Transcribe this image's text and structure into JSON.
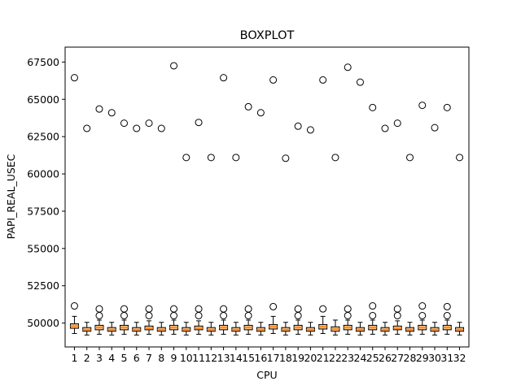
{
  "chart_data": {
    "type": "boxplot",
    "title": "BOXPLOT",
    "xlabel": "CPU",
    "ylabel": "PAPI_REAL_USEC",
    "ylim": [
      48400,
      68500
    ],
    "yticks": [
      50000,
      52500,
      55000,
      57500,
      60000,
      62500,
      65000,
      67500
    ],
    "ytick_labels": [
      "50000",
      "52500",
      "55000",
      "57500",
      "60000",
      "62500",
      "65000",
      "67500"
    ],
    "categories": [
      "1",
      "2",
      "3",
      "4",
      "5",
      "6",
      "7",
      "8",
      "9",
      "10",
      "11",
      "12",
      "13",
      "14",
      "15",
      "16",
      "17",
      "18",
      "19",
      "20",
      "21",
      "22",
      "23",
      "24",
      "25",
      "26",
      "27",
      "28",
      "29",
      "30",
      "31",
      "32"
    ],
    "box_color": "#ffbf80",
    "median_color": "#ff7f0e",
    "boxes": [
      {
        "q1": 49650,
        "median": 49800,
        "q3": 49950,
        "whislo": 49300,
        "whishi": 50450,
        "fliers": [
          51150,
          66450
        ]
      },
      {
        "q1": 49450,
        "median": 49550,
        "q3": 49700,
        "whislo": 49200,
        "whishi": 50050,
        "fliers": [
          63050
        ]
      },
      {
        "q1": 49550,
        "median": 49700,
        "q3": 49850,
        "whislo": 49250,
        "whishi": 50200,
        "fliers": [
          50500,
          50950,
          64350
        ]
      },
      {
        "q1": 49450,
        "median": 49550,
        "q3": 49700,
        "whislo": 49200,
        "whishi": 50050,
        "fliers": [
          64100
        ]
      },
      {
        "q1": 49550,
        "median": 49700,
        "q3": 49850,
        "whislo": 49250,
        "whishi": 50200,
        "fliers": [
          50500,
          50950,
          63400
        ]
      },
      {
        "q1": 49450,
        "median": 49550,
        "q3": 49700,
        "whislo": 49200,
        "whishi": 50050,
        "fliers": [
          63050
        ]
      },
      {
        "q1": 49550,
        "median": 49650,
        "q3": 49800,
        "whislo": 49250,
        "whishi": 50150,
        "fliers": [
          50500,
          50950,
          63400
        ]
      },
      {
        "q1": 49450,
        "median": 49550,
        "q3": 49700,
        "whislo": 49200,
        "whishi": 50050,
        "fliers": [
          63050
        ]
      },
      {
        "q1": 49550,
        "median": 49700,
        "q3": 49850,
        "whislo": 49250,
        "whishi": 50200,
        "fliers": [
          50500,
          50950,
          67250
        ]
      },
      {
        "q1": 49450,
        "median": 49550,
        "q3": 49700,
        "whislo": 49200,
        "whishi": 50050,
        "fliers": [
          61100
        ]
      },
      {
        "q1": 49550,
        "median": 49650,
        "q3": 49800,
        "whislo": 49250,
        "whishi": 50150,
        "fliers": [
          50500,
          50950,
          63450
        ]
      },
      {
        "q1": 49450,
        "median": 49550,
        "q3": 49700,
        "whislo": 49200,
        "whishi": 50050,
        "fliers": [
          61100
        ]
      },
      {
        "q1": 49550,
        "median": 49700,
        "q3": 49850,
        "whislo": 49250,
        "whishi": 50200,
        "fliers": [
          50500,
          50950,
          66450
        ]
      },
      {
        "q1": 49450,
        "median": 49550,
        "q3": 49700,
        "whislo": 49200,
        "whishi": 50050,
        "fliers": [
          61100
        ]
      },
      {
        "q1": 49550,
        "median": 49700,
        "q3": 49850,
        "whislo": 49250,
        "whishi": 50200,
        "fliers": [
          50500,
          50950,
          64500
        ]
      },
      {
        "q1": 49450,
        "median": 49550,
        "q3": 49700,
        "whislo": 49200,
        "whishi": 50050,
        "fliers": [
          64100
        ]
      },
      {
        "q1": 49600,
        "median": 49750,
        "q3": 49900,
        "whislo": 49300,
        "whishi": 50450,
        "fliers": [
          51100,
          66300
        ]
      },
      {
        "q1": 49450,
        "median": 49550,
        "q3": 49700,
        "whislo": 49200,
        "whishi": 50050,
        "fliers": [
          61050
        ]
      },
      {
        "q1": 49550,
        "median": 49700,
        "q3": 49850,
        "whislo": 49250,
        "whishi": 50200,
        "fliers": [
          50500,
          50950,
          63200
        ]
      },
      {
        "q1": 49450,
        "median": 49550,
        "q3": 49700,
        "whislo": 49200,
        "whishi": 50050,
        "fliers": [
          62950
        ]
      },
      {
        "q1": 49600,
        "median": 49750,
        "q3": 49900,
        "whislo": 49300,
        "whishi": 50450,
        "fliers": [
          50950,
          66300
        ]
      },
      {
        "q1": 49450,
        "median": 49600,
        "q3": 49750,
        "whislo": 49200,
        "whishi": 50200,
        "fliers": [
          61100
        ]
      },
      {
        "q1": 49550,
        "median": 49700,
        "q3": 49850,
        "whislo": 49250,
        "whishi": 50200,
        "fliers": [
          50500,
          50950,
          67150
        ]
      },
      {
        "q1": 49450,
        "median": 49550,
        "q3": 49700,
        "whislo": 49200,
        "whishi": 50050,
        "fliers": [
          66150
        ]
      },
      {
        "q1": 49550,
        "median": 49700,
        "q3": 49850,
        "whislo": 49250,
        "whishi": 50200,
        "fliers": [
          50500,
          51150,
          64450
        ]
      },
      {
        "q1": 49450,
        "median": 49550,
        "q3": 49700,
        "whislo": 49200,
        "whishi": 50050,
        "fliers": [
          63050
        ]
      },
      {
        "q1": 49550,
        "median": 49650,
        "q3": 49800,
        "whislo": 49250,
        "whishi": 50150,
        "fliers": [
          50500,
          50950,
          63400
        ]
      },
      {
        "q1": 49450,
        "median": 49550,
        "q3": 49700,
        "whislo": 49200,
        "whishi": 50050,
        "fliers": [
          61100
        ]
      },
      {
        "q1": 49550,
        "median": 49700,
        "q3": 49850,
        "whislo": 49250,
        "whishi": 50200,
        "fliers": [
          50500,
          51150,
          64600
        ]
      },
      {
        "q1": 49450,
        "median": 49550,
        "q3": 49700,
        "whislo": 49200,
        "whishi": 50050,
        "fliers": [
          63100
        ]
      },
      {
        "q1": 49550,
        "median": 49700,
        "q3": 49850,
        "whislo": 49250,
        "whishi": 50200,
        "fliers": [
          50500,
          51100,
          64450
        ]
      },
      {
        "q1": 49450,
        "median": 49550,
        "q3": 49700,
        "whislo": 49200,
        "whishi": 50050,
        "fliers": [
          61100
        ]
      }
    ]
  }
}
